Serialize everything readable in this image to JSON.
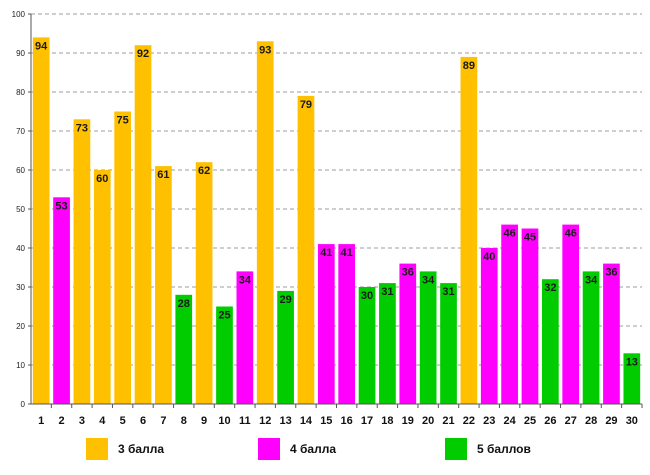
{
  "chart_data": {
    "type": "bar",
    "categories": [
      "1",
      "2",
      "3",
      "4",
      "5",
      "6",
      "7",
      "8",
      "9",
      "10",
      "11",
      "12",
      "13",
      "14",
      "15",
      "16",
      "17",
      "18",
      "19",
      "20",
      "21",
      "22",
      "23",
      "24",
      "25",
      "26",
      "27",
      "28",
      "29",
      "30"
    ],
    "values": [
      94,
      53,
      73,
      60,
      75,
      92,
      61,
      28,
      62,
      25,
      34,
      93,
      29,
      79,
      41,
      41,
      30,
      31,
      36,
      34,
      31,
      89,
      40,
      46,
      45,
      32,
      46,
      34,
      36,
      13
    ],
    "grade": [
      "3 балла",
      "4 балла",
      "3 балла",
      "3 балла",
      "3 балла",
      "3 балла",
      "3 балла",
      "5 баллов",
      "3 балла",
      "5 баллов",
      "4 балла",
      "3 балла",
      "5 баллов",
      "3 балла",
      "4 балла",
      "4 балла",
      "5 баллов",
      "5 баллов",
      "4 балла",
      "5 баллов",
      "5 баллов",
      "3 балла",
      "4 балла",
      "4 балла",
      "4 балла",
      "5 баллов",
      "4 балла",
      "5 баллов",
      "4 балла",
      "5 баллов"
    ],
    "yticks": [
      0,
      10,
      20,
      30,
      40,
      50,
      60,
      70,
      80,
      90,
      100
    ],
    "ylim": [
      0,
      100
    ],
    "grid": true,
    "title": "",
    "xlabel": "",
    "ylabel": "",
    "legend": [
      {
        "name": "3 балла",
        "color": "#FFC000"
      },
      {
        "name": "4 балла",
        "color": "#FF00FF"
      },
      {
        "name": "5 баллов",
        "color": "#00CC00"
      }
    ],
    "legend_position": "bottom"
  }
}
